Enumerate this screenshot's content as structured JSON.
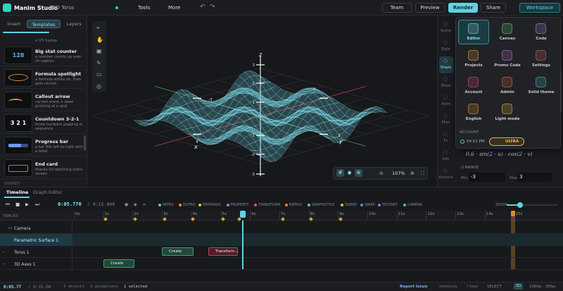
{
  "topbar": {
    "app": "Manim Studio",
    "project": "3D Torus",
    "tools": "Tools",
    "more": "More",
    "team": "Team",
    "preview": "Preview",
    "render": "Render",
    "share": "Share",
    "workspace": "Workspace"
  },
  "left_panel": {
    "tabs": [
      "Insert",
      "Templates",
      "Layers"
    ],
    "partial": "a VS badge",
    "templates": [
      {
        "title": "Big stat counter",
        "desc": "a number counts up over its caption",
        "thumb": "128"
      },
      {
        "title": "Formula spotlight",
        "desc": "a formula writes on, then gets circled"
      },
      {
        "title": "Callout arrow",
        "desc": "curved arrow + label pointing at a spot"
      },
      {
        "title": "Countdown 3-2-1",
        "desc": "three numbers popping in sequence",
        "thumb": "3 2 1"
      },
      {
        "title": "Progress bar",
        "desc": "a bar fills left-to-right with a label"
      },
      {
        "title": "End card",
        "desc": "thanks-for-watching outro screen"
      }
    ],
    "section": "SHAPES"
  },
  "viewport": {
    "z_label": "z",
    "x_label": "x",
    "y_label": "y",
    "z_ticks": [
      "3",
      "2",
      "1",
      "-1",
      "-2",
      "-3"
    ],
    "plane_ticks": [
      "-3",
      "-4",
      "4",
      "3"
    ],
    "zoom": "107%"
  },
  "sidebar": [
    "Scene",
    "Style",
    "Shape",
    "Move",
    "Anim",
    "Phys",
    "Fx",
    "Info",
    "Account"
  ],
  "menu": {
    "items": [
      "Editor",
      "Canvas",
      "Code",
      "Projects",
      "Promo Code",
      "Settings",
      "Account",
      "Admin",
      "Solid theme",
      "English",
      "Light mode"
    ],
    "section": "ACCOUNT",
    "time": "04:51 PM",
    "plan": "ULTRA"
  },
  "properties": {
    "formula": "0.6 · sin(2 · u) · cos(2 · v)",
    "range_title": "U RANGE",
    "min_label": "Min",
    "min": "-3",
    "max_label": "Max",
    "max": "3"
  },
  "timeline": {
    "tabs": [
      "Timeline",
      "Graph Editor"
    ],
    "time": "0:05.770",
    "duration": "/ 0:15.000",
    "categories": [
      "INTRO",
      "OUTRO",
      "EMPHASIS",
      "PROPERTY",
      "TRANSFORM",
      "MATRIX",
      "GRAPHSTYLE",
      "SWEEP",
      "WARP",
      "TEXTART",
      "CAMERA"
    ],
    "zoom": "ZOOM",
    "tracks_header": "TRACKS",
    "ruler": [
      "0s",
      "1s",
      "2s",
      "3s",
      "4s",
      "5s",
      "6s",
      "7s",
      "8s",
      "9s",
      "10s",
      "11s",
      "12s",
      "13s",
      "14s",
      "15s"
    ],
    "tracks": [
      "Camera",
      "Parametric Surface 1",
      "Torus 1",
      "3D Axes 1"
    ],
    "clips": [
      "Create",
      "Transform...",
      "Create"
    ]
  },
  "status": {
    "time": "0:05.77",
    "duration": "/ 0:15.00",
    "objects": "3 objects",
    "animations": "3 animations",
    "selected": "1 selected",
    "report": "Report Issue",
    "shortcuts": "shortcuts",
    "tour": "? tour",
    "mode": "SELECT",
    "view": "3D",
    "format": "1080p · 30fps"
  }
}
